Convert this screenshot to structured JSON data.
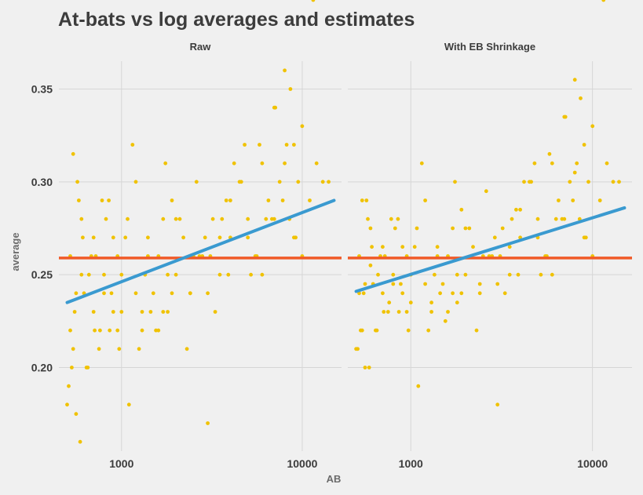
{
  "chart_data": {
    "type": "scatter",
    "title": "At-bats vs log averages and estimates",
    "xlabel": "AB",
    "ylabel": "average",
    "x_scale": "log10",
    "xlim": [
      450,
      16500
    ],
    "ylim": [
      0.155,
      0.365
    ],
    "x_ticks": [
      1000,
      10000
    ],
    "x_tick_labels": [
      "1000",
      "10000"
    ],
    "y_ticks": [
      0.2,
      0.25,
      0.3,
      0.35
    ],
    "y_tick_labels": [
      "0.20",
      "0.25",
      "0.30",
      "0.35"
    ],
    "grid": true,
    "colors": {
      "points": "#f0c200",
      "fit_line": "#3a9ad0",
      "reference_line": "#f05a28",
      "background": "#f0f0f0"
    },
    "reference_line": {
      "y": 0.259
    },
    "panels": [
      {
        "name": "Raw",
        "fit_line": {
          "x": [
            500,
            15000
          ],
          "y": [
            0.235,
            0.29
          ]
        },
        "points_x": [
          500,
          520,
          540,
          560,
          600,
          650,
          700,
          750,
          800,
          850,
          900,
          950,
          1000,
          1100,
          1200,
          1300,
          1400,
          1500,
          1600,
          1700,
          1800,
          1900,
          2000,
          2200,
          2400,
          2600,
          2800,
          3000,
          3200,
          3500,
          3800,
          4000,
          4500,
          5000,
          5500,
          6000,
          6500,
          7000,
          7500,
          8000,
          8500,
          9000,
          9500,
          10000,
          11000,
          12000,
          13000,
          14000,
          520,
          600,
          700,
          800,
          900,
          1000,
          1200,
          1400,
          1600,
          1800,
          2000,
          2500,
          3000,
          3500,
          4000,
          5000,
          6000,
          7000,
          8000,
          9000,
          10000,
          560,
          640,
          720,
          820,
          950,
          1150,
          1350,
          1700,
          2100,
          2700,
          3300,
          4200,
          5200,
          6300,
          7800,
          9200,
          540,
          580,
          620,
          680,
          760,
          880,
          1050,
          1250,
          1450,
          1750,
          2300,
          2900,
          3600,
          4600,
          5600,
          6800,
          8200,
          510,
          530,
          550,
          570,
          590,
          610,
          660,
          710,
          780,
          860,
          970,
          1080,
          1300,
          1550,
          1900,
          2400,
          3100,
          3900,
          4800,
          5800,
          7100,
          8600,
          11500
        ],
        "points_y": [
          0.18,
          0.22,
          0.315,
          0.175,
          0.25,
          0.2,
          0.27,
          0.21,
          0.24,
          0.29,
          0.23,
          0.26,
          0.25,
          0.18,
          0.3,
          0.22,
          0.27,
          0.24,
          0.26,
          0.28,
          0.23,
          0.29,
          0.25,
          0.27,
          0.24,
          0.3,
          0.26,
          0.17,
          0.28,
          0.25,
          0.29,
          0.27,
          0.3,
          0.28,
          0.26,
          0.31,
          0.29,
          0.34,
          0.3,
          0.36,
          0.28,
          0.32,
          0.3,
          0.33,
          0.29,
          0.31,
          0.3,
          0.3,
          0.26,
          0.28,
          0.23,
          0.25,
          0.27,
          0.23,
          0.24,
          0.26,
          0.22,
          0.25,
          0.28,
          0.26,
          0.24,
          0.27,
          0.29,
          0.27,
          0.25,
          0.28,
          0.31,
          0.27,
          0.26,
          0.24,
          0.2,
          0.26,
          0.28,
          0.22,
          0.32,
          0.25,
          0.23,
          0.28,
          0.26,
          0.23,
          0.31,
          0.25,
          0.28,
          0.29,
          0.27,
          0.21,
          0.29,
          0.24,
          0.26,
          0.22,
          0.24,
          0.27,
          0.21,
          0.23,
          0.31,
          0.21,
          0.27,
          0.28,
          0.3,
          0.26,
          0.28,
          0.32,
          0.19,
          0.2,
          0.23,
          0.3,
          0.16,
          0.27,
          0.25,
          0.22,
          0.29,
          0.22,
          0.21,
          0.28,
          0.23,
          0.22,
          0.24,
          0.24,
          0.26,
          0.25,
          0.32,
          0.32,
          0.34,
          0.35
        ]
      },
      {
        "name": "With EB Shrinkage",
        "fit_line": {
          "x": [
            500,
            15000
          ],
          "y": [
            0.241,
            0.286
          ]
        },
        "points_x": [
          500,
          520,
          540,
          560,
          600,
          650,
          700,
          750,
          800,
          850,
          900,
          950,
          1000,
          1100,
          1200,
          1300,
          1400,
          1500,
          1600,
          1700,
          1800,
          1900,
          2000,
          2200,
          2400,
          2600,
          2800,
          3000,
          3200,
          3500,
          3800,
          4000,
          4500,
          5000,
          5500,
          6000,
          6500,
          7000,
          7500,
          8000,
          8500,
          9000,
          9500,
          10000,
          11000,
          12000,
          13000,
          14000,
          520,
          600,
          700,
          800,
          900,
          1000,
          1200,
          1400,
          1600,
          1800,
          2000,
          2500,
          3000,
          3500,
          4000,
          5000,
          6000,
          7000,
          8000,
          9000,
          10000,
          560,
          640,
          720,
          820,
          950,
          1150,
          1350,
          1700,
          2100,
          2700,
          3300,
          4200,
          5200,
          6300,
          7800,
          9200,
          540,
          580,
          620,
          680,
          760,
          880,
          1050,
          1250,
          1450,
          1750,
          2300,
          2900,
          3600,
          4600,
          5600,
          6800,
          8200,
          510,
          530,
          550,
          570,
          590,
          610,
          660,
          710,
          780,
          860,
          970,
          1080,
          1300,
          1550,
          1900,
          2400,
          3100,
          3900,
          4800,
          5800,
          7100,
          8600,
          11500
        ],
        "points_y": [
          0.21,
          0.24,
          0.29,
          0.2,
          0.255,
          0.22,
          0.265,
          0.23,
          0.245,
          0.28,
          0.24,
          0.26,
          0.25,
          0.19,
          0.29,
          0.23,
          0.265,
          0.245,
          0.26,
          0.275,
          0.235,
          0.285,
          0.25,
          0.265,
          0.245,
          0.295,
          0.26,
          0.18,
          0.275,
          0.25,
          0.285,
          0.27,
          0.3,
          0.28,
          0.26,
          0.31,
          0.29,
          0.335,
          0.3,
          0.355,
          0.28,
          0.32,
          0.3,
          0.33,
          0.29,
          0.31,
          0.3,
          0.3,
          0.26,
          0.275,
          0.24,
          0.25,
          0.265,
          0.235,
          0.245,
          0.26,
          0.23,
          0.25,
          0.275,
          0.26,
          0.245,
          0.265,
          0.285,
          0.27,
          0.25,
          0.28,
          0.305,
          0.27,
          0.26,
          0.245,
          0.22,
          0.26,
          0.275,
          0.23,
          0.31,
          0.25,
          0.24,
          0.275,
          0.26,
          0.24,
          0.3,
          0.25,
          0.28,
          0.29,
          0.27,
          0.22,
          0.28,
          0.245,
          0.26,
          0.235,
          0.245,
          0.265,
          0.22,
          0.24,
          0.3,
          0.22,
          0.27,
          0.28,
          0.3,
          0.26,
          0.28,
          0.31,
          0.21,
          0.22,
          0.24,
          0.29,
          0.2,
          0.265,
          0.25,
          0.23,
          0.28,
          0.23,
          0.22,
          0.275,
          0.235,
          0.225,
          0.24,
          0.24,
          0.26,
          0.25,
          0.31,
          0.315,
          0.335,
          0.345
        ]
      }
    ]
  }
}
